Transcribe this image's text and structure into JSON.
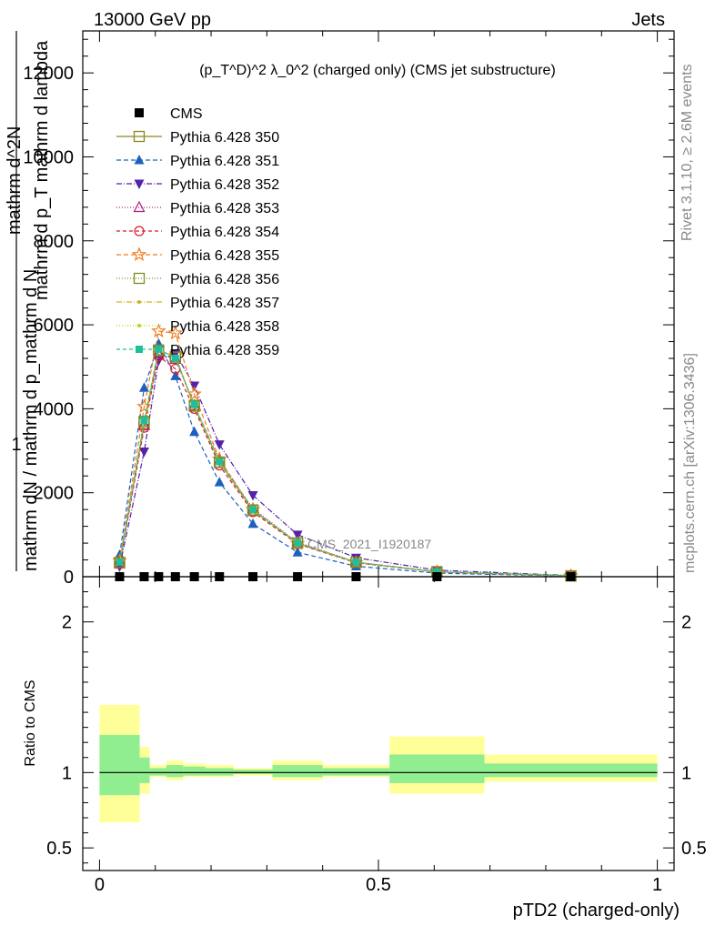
{
  "header": {
    "left": "13000 GeV pp",
    "right": "Jets"
  },
  "side_labels": {
    "rivet": "Rivet 3.1.10, ≥ 2.6M events",
    "mcplots": "mcplots.cern.ch [arXiv:1306.3436]"
  },
  "chart_data": [
    {
      "type": "line",
      "title": "(p_T^D)^2 λ_0^2 (charged only) (CMS jet substructure)",
      "analysis_label": "CMS_2021_I1920187",
      "ylabel_numerator": "1",
      "ylabel_line1": "mathrm dN / mathrm d p_mathrm d N",
      "ylabel_line2": "mathrm d^2N",
      "ylabel_line3": "mathrm d p_T mathrm d lambda",
      "ylim": [
        0,
        13000
      ],
      "xlim": [
        -0.03,
        1.03
      ],
      "yticks": [
        0,
        2000,
        4000,
        6000,
        8000,
        10000,
        12000
      ],
      "ytick_labels": [
        "0",
        "2000",
        "4000",
        "6000",
        "8000",
        "10000",
        "12000"
      ],
      "x": [
        0.036,
        0.08,
        0.106,
        0.136,
        0.17,
        0.215,
        0.275,
        0.355,
        0.46,
        0.605,
        0.845
      ],
      "cms_values": [
        0,
        0,
        0,
        0,
        0,
        0,
        0,
        0,
        0,
        0,
        0
      ],
      "series": [
        {
          "name": "Pythia 6.428 350",
          "color": "#8a8a1e",
          "marker": "open-square",
          "dash": "",
          "values": [
            330,
            3650,
            5380,
            5250,
            4060,
            2720,
            1580,
            800,
            340,
            115,
            20
          ]
        },
        {
          "name": "Pythia 6.428 351",
          "color": "#1f5fbf",
          "marker": "filled-triangle-up",
          "dash": "5,3",
          "values": [
            520,
            4500,
            5550,
            4780,
            3450,
            2250,
            1260,
            580,
            250,
            85,
            15
          ]
        },
        {
          "name": "Pythia 6.428 352",
          "color": "#5522aa",
          "marker": "filled-triangle-down",
          "dash": "6,2,1,2",
          "values": [
            240,
            2980,
            5150,
            5320,
            4550,
            3150,
            1940,
            1000,
            450,
            155,
            28
          ]
        },
        {
          "name": "Pythia 6.428 353",
          "color": "#b0207a",
          "marker": "open-triangle-up",
          "dash": "1,2",
          "values": [
            310,
            3600,
            5300,
            5180,
            4080,
            2780,
            1620,
            820,
            350,
            118,
            21
          ]
        },
        {
          "name": "Pythia 6.428 354",
          "color": "#d41e2e",
          "marker": "open-circle",
          "dash": "4,3",
          "values": [
            300,
            3550,
            5250,
            4950,
            4000,
            2650,
            1540,
            780,
            330,
            112,
            20
          ]
        },
        {
          "name": "Pythia 6.428 355",
          "color": "#f07c1c",
          "marker": "open-star",
          "dash": "5,3",
          "values": [
            380,
            4050,
            5850,
            5800,
            4350,
            2800,
            1600,
            790,
            335,
            114,
            20
          ]
        },
        {
          "name": "Pythia 6.428 356",
          "color": "#7d8c1a",
          "marker": "open-square",
          "dash": "1,2",
          "values": [
            340,
            3700,
            5400,
            5230,
            4080,
            2730,
            1590,
            805,
            342,
            116,
            20
          ]
        },
        {
          "name": "Pythia 6.428 357",
          "color": "#d4b41e",
          "marker": "small-dot",
          "dash": "6,2,1,2",
          "values": [
            335,
            3680,
            5390,
            5240,
            4070,
            2725,
            1585,
            802,
            341,
            115,
            20
          ]
        },
        {
          "name": "Pythia 6.428 358",
          "color": "#b8d41e",
          "marker": "small-dot",
          "dash": "1,2",
          "values": [
            338,
            3690,
            5395,
            5235,
            4075,
            2728,
            1588,
            803,
            341,
            115,
            20
          ]
        },
        {
          "name": "Pythia 6.428 359",
          "color": "#1ec09a",
          "marker": "filled-square",
          "dash": "4,3",
          "values": [
            345,
            3720,
            5420,
            5200,
            4100,
            2740,
            1595,
            808,
            343,
            116,
            20
          ]
        }
      ],
      "legend": {
        "data_label": "CMS",
        "placement": "upper-left"
      }
    },
    {
      "type": "area",
      "ylabel": "Ratio to CMS",
      "xlabel": "pTD2 (charged-only)",
      "ylim": [
        0.35,
        2.3
      ],
      "xlim": [
        -0.03,
        1.03
      ],
      "yticks": [
        0.5,
        1,
        2
      ],
      "ytick_labels": [
        "0.5",
        "1",
        "2"
      ],
      "xticks": [
        0,
        0.5,
        1
      ],
      "xtick_labels": [
        "0",
        "0.5",
        "1"
      ],
      "bins": [
        0,
        0.072,
        0.09,
        0.12,
        0.15,
        0.19,
        0.24,
        0.31,
        0.4,
        0.52,
        0.69,
        1.0
      ],
      "band_inner": [
        [
          0.85,
          1.25
        ],
        [
          0.93,
          1.1
        ],
        [
          0.98,
          1.03
        ],
        [
          0.97,
          1.05
        ],
        [
          0.98,
          1.04
        ],
        [
          0.98,
          1.03
        ],
        [
          0.99,
          1.02
        ],
        [
          0.97,
          1.05
        ],
        [
          0.98,
          1.03
        ],
        [
          0.93,
          1.12
        ],
        [
          0.97,
          1.06
        ]
      ],
      "band_outer": [
        [
          0.67,
          1.45
        ],
        [
          0.86,
          1.17
        ],
        [
          0.97,
          1.05
        ],
        [
          0.95,
          1.08
        ],
        [
          0.97,
          1.06
        ],
        [
          0.97,
          1.05
        ],
        [
          0.98,
          1.03
        ],
        [
          0.95,
          1.08
        ],
        [
          0.97,
          1.05
        ],
        [
          0.86,
          1.24
        ],
        [
          0.94,
          1.12
        ]
      ],
      "reference": 1
    }
  ]
}
